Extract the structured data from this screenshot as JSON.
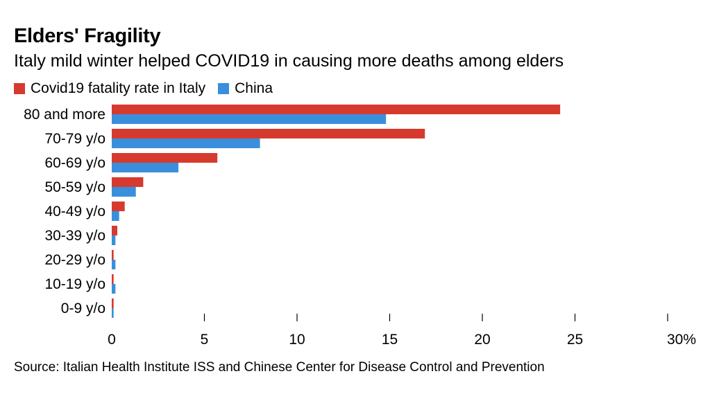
{
  "colors": {
    "italy": "#d63a2f",
    "china": "#3a8fdc"
  },
  "chart_data": {
    "type": "bar",
    "orientation": "horizontal",
    "title": "Elders' Fragility",
    "subtitle": "Italy mild winter helped COVID19 in causing more deaths among elders",
    "categories": [
      "80 and more",
      "70-79 y/o",
      "60-69 y/o",
      "50-59 y/o",
      "40-49 y/o",
      "30-39 y/o",
      "20-29 y/o",
      "10-19 y/o",
      "0-9 y/o"
    ],
    "series": [
      {
        "name": "Covid19 fatality rate in Italy",
        "values": [
          24.2,
          16.9,
          5.7,
          1.7,
          0.7,
          0.3,
          0.1,
          0.1,
          0.1
        ]
      },
      {
        "name": "China",
        "values": [
          14.8,
          8.0,
          3.6,
          1.3,
          0.4,
          0.2,
          0.2,
          0.2,
          0.1
        ]
      }
    ],
    "xlim": [
      0,
      30
    ],
    "xticks": [
      0,
      5,
      10,
      15,
      20,
      25,
      30
    ],
    "xtick_labels": [
      "0",
      "5",
      "10",
      "15",
      "20",
      "25",
      "30%"
    ],
    "legend_position": "top-left",
    "grid": false
  },
  "source": "Source: Italian Health Institute ISS and Chinese Center for Disease Control and Prevention"
}
